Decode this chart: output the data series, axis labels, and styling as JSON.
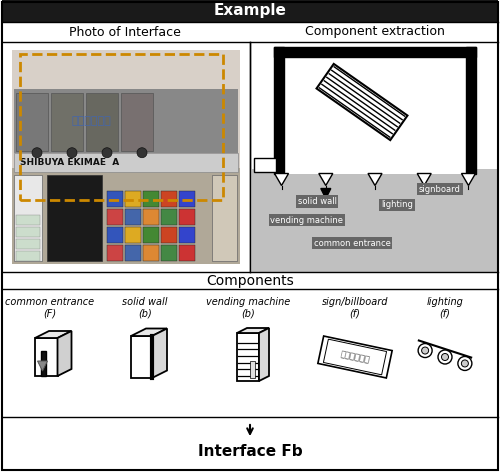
{
  "title": "Example",
  "top_left_label": "Photo of Interface",
  "top_right_label": "Component extraction",
  "bottom_section_label": "Components",
  "component_labels_line1": [
    "common entrance",
    "solid wall",
    "vending machine",
    "sign/billboard",
    "lighting"
  ],
  "component_labels_line2": [
    "(F)",
    "(b)",
    "(b)",
    "(f)",
    "(f)"
  ],
  "interface_label": "Interface Fb",
  "bg_color": "#ffffff",
  "header_bg": "#1a1a1a",
  "header_text_color": "#ffffff",
  "gray_fill": "#c0c0c0",
  "annotation_bg": "#666666",
  "annotation_text": "#ffffff",
  "photo_bg": "#888880"
}
